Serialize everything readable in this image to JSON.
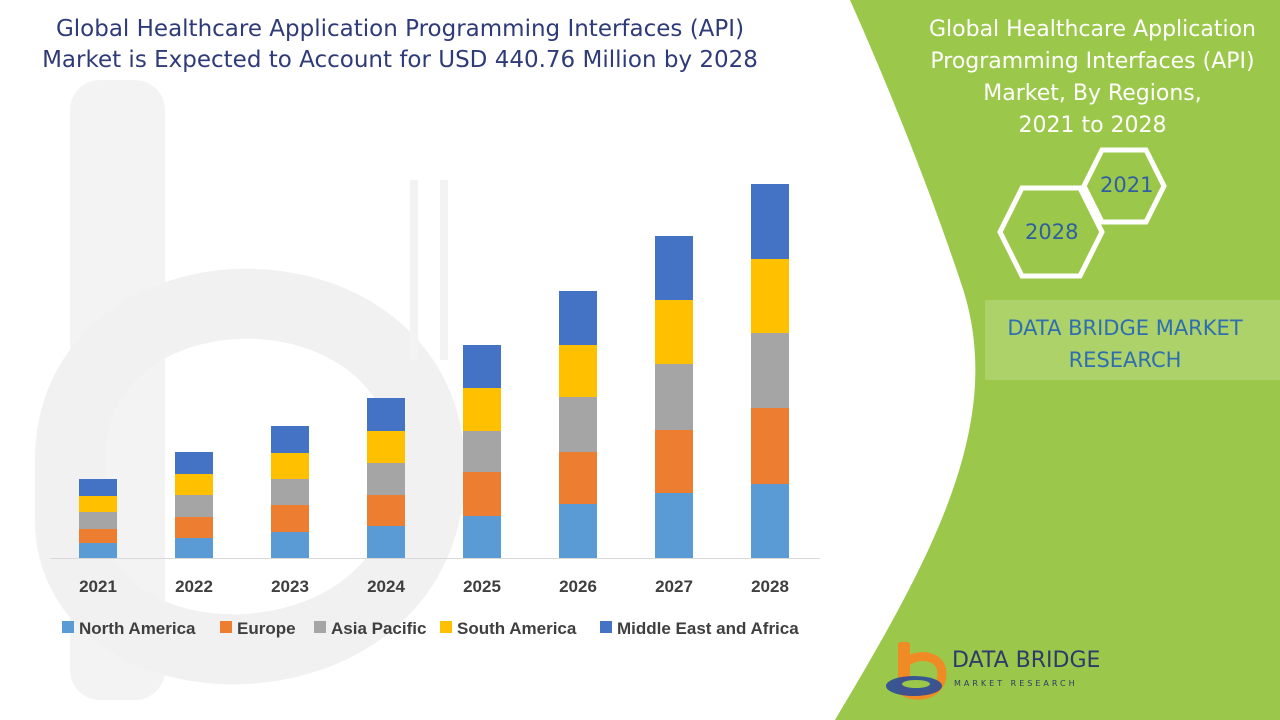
{
  "header": {
    "title_line1": "Global Healthcare Application Programming Interfaces (API)",
    "title_line2": "Market is Expected to Account for USD 440.76 Million by 2028"
  },
  "side_panel": {
    "title_lines": [
      "Global Healthcare Application",
      "Programming Interfaces (API)",
      "Market, By Regions,",
      "2021 to 2028"
    ],
    "hex_start": "2021",
    "hex_end": "2028",
    "research_line1": "DATA BRIDGE MARKET",
    "research_line2": "RESEARCH"
  },
  "brand": {
    "name": "DATA BRIDGE",
    "tagline": "MARKET RESEARCH"
  },
  "colors": {
    "panel_green": "#9bc84a",
    "accent_blue": "#2f6fb0"
  },
  "chart_data": {
    "type": "bar",
    "stacked": true,
    "categories": [
      "2021",
      "2022",
      "2023",
      "2024",
      "2025",
      "2026",
      "2027",
      "2028"
    ],
    "series": [
      {
        "name": "North America",
        "color": "#5b9bd5",
        "values": [
          15,
          20,
          26,
          32,
          42,
          54,
          65,
          74
        ]
      },
      {
        "name": "Europe",
        "color": "#ed7d31",
        "values": [
          14,
          21,
          27,
          31,
          44,
          52,
          63,
          76
        ]
      },
      {
        "name": "Asia Pacific",
        "color": "#a5a5a5",
        "values": [
          17,
          22,
          26,
          32,
          41,
          55,
          66,
          75
        ]
      },
      {
        "name": "South America",
        "color": "#ffc000",
        "values": [
          16,
          21,
          26,
          32,
          43,
          52,
          64,
          74
        ]
      },
      {
        "name": "Middle East and Africa",
        "color": "#4472c4",
        "values": [
          17,
          22,
          27,
          33,
          43,
          54,
          64,
          75
        ]
      }
    ],
    "legend_position": "bottom",
    "grid": false
  }
}
